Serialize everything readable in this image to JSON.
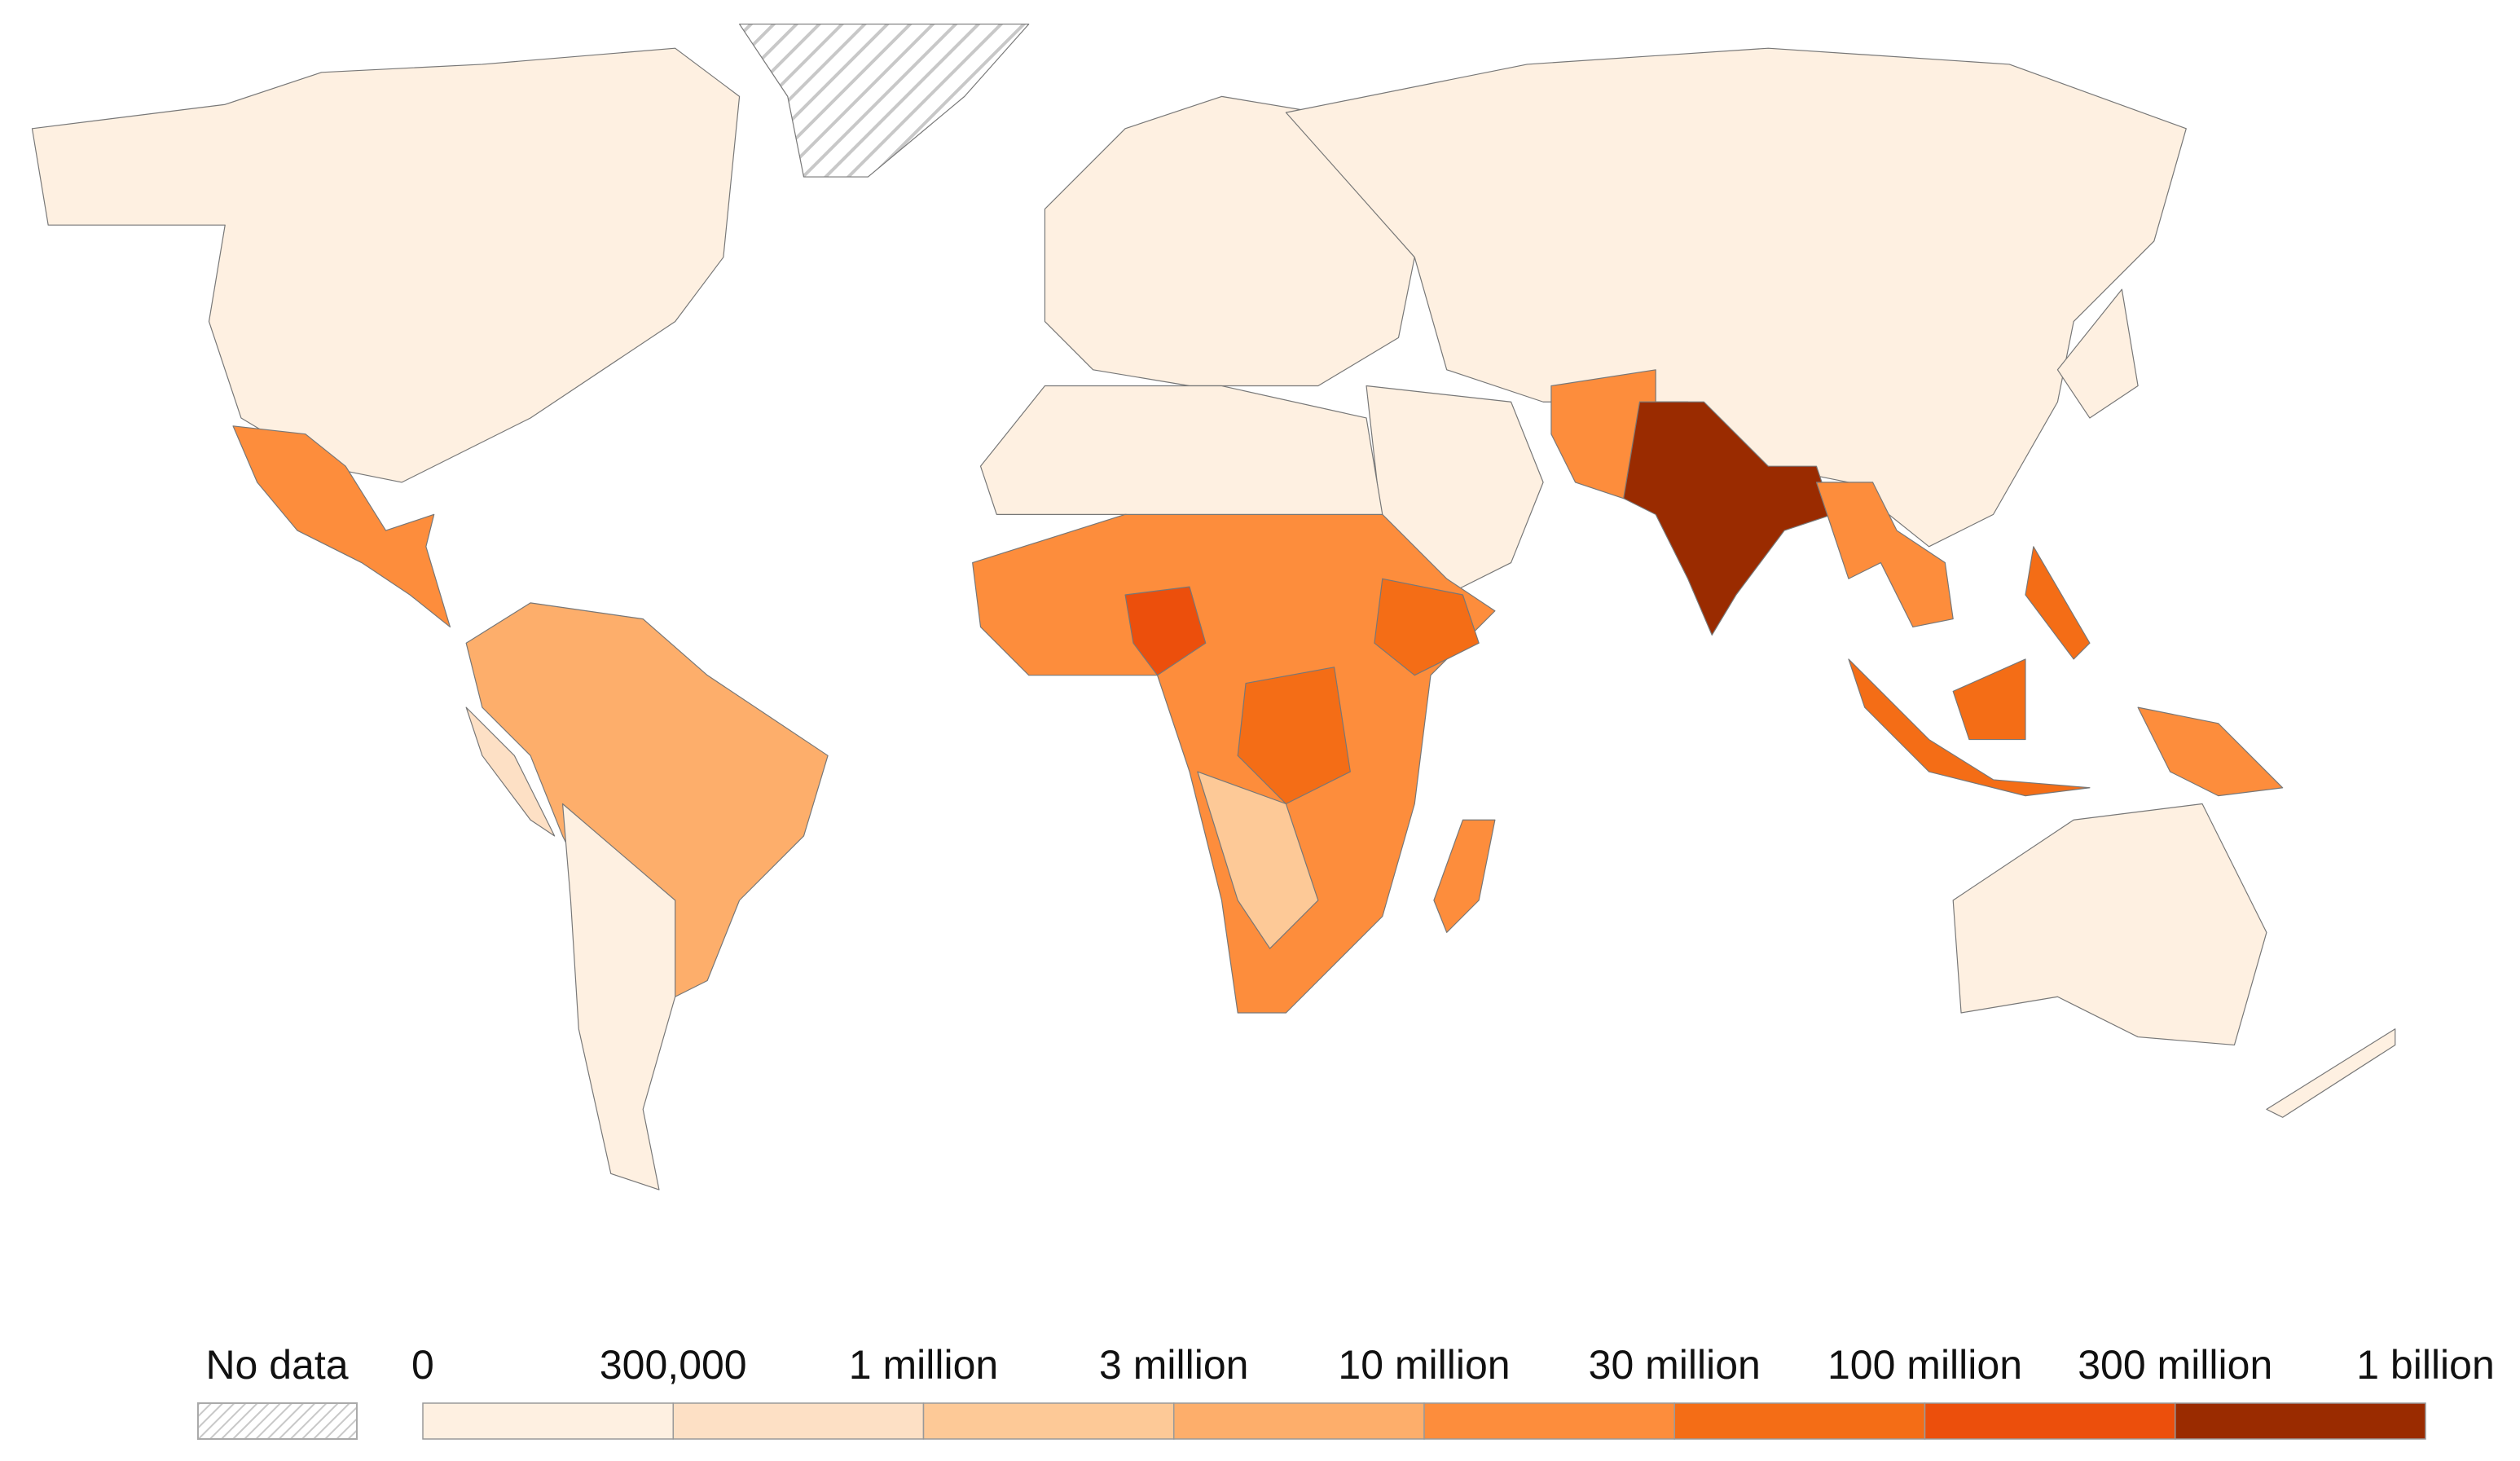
{
  "legend": {
    "no_data": "No data",
    "ticks": [
      "0",
      "300,000",
      "1 million",
      "3 million",
      "10 million",
      "30 million",
      "100 million",
      "300 million",
      "1 billion"
    ],
    "colors": [
      "#fef0e1",
      "#fde0c5",
      "#fdc997",
      "#fdae6b",
      "#fd8d3c",
      "#f46d16",
      "#ec4f0c",
      "#9a2b00"
    ]
  }
}
